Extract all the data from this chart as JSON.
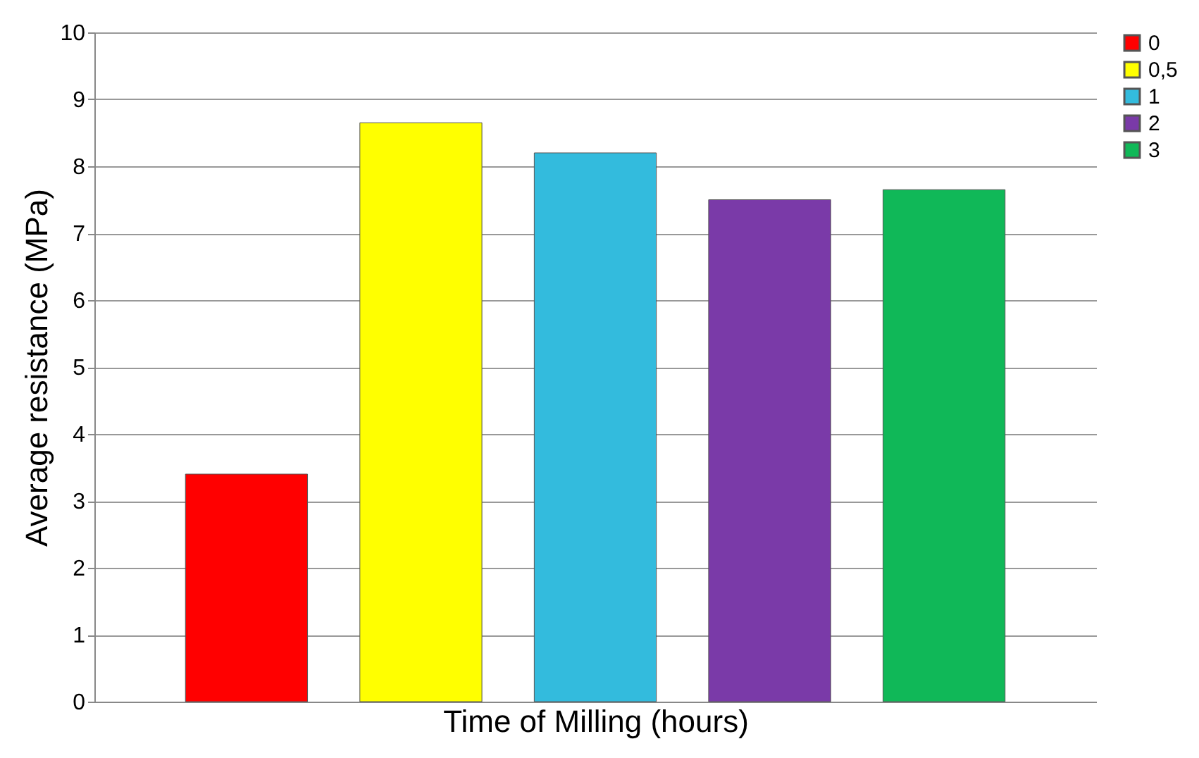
{
  "chart_data": {
    "type": "bar",
    "xlabel": "Time of Milling (hours)",
    "ylabel": "Average resistance (MPa)",
    "categories": [
      null
    ],
    "series": [
      {
        "name": "0",
        "color": "#ff0000",
        "values": [
          3.4
        ]
      },
      {
        "name": "0,5",
        "color": "#ffff00",
        "values": [
          8.65
        ]
      },
      {
        "name": "1",
        "color": "#33bbdd",
        "values": [
          8.2
        ]
      },
      {
        "name": "2",
        "color": "#7a3aa8",
        "values": [
          7.5
        ]
      },
      {
        "name": "3",
        "color": "#10b858",
        "values": [
          7.65
        ]
      }
    ],
    "ylim": [
      0,
      10
    ],
    "yticks": [
      0,
      1,
      2,
      3,
      4,
      5,
      6,
      7,
      8,
      9,
      10
    ],
    "grid": "y",
    "legend": "right",
    "tick_labels": "y"
  }
}
